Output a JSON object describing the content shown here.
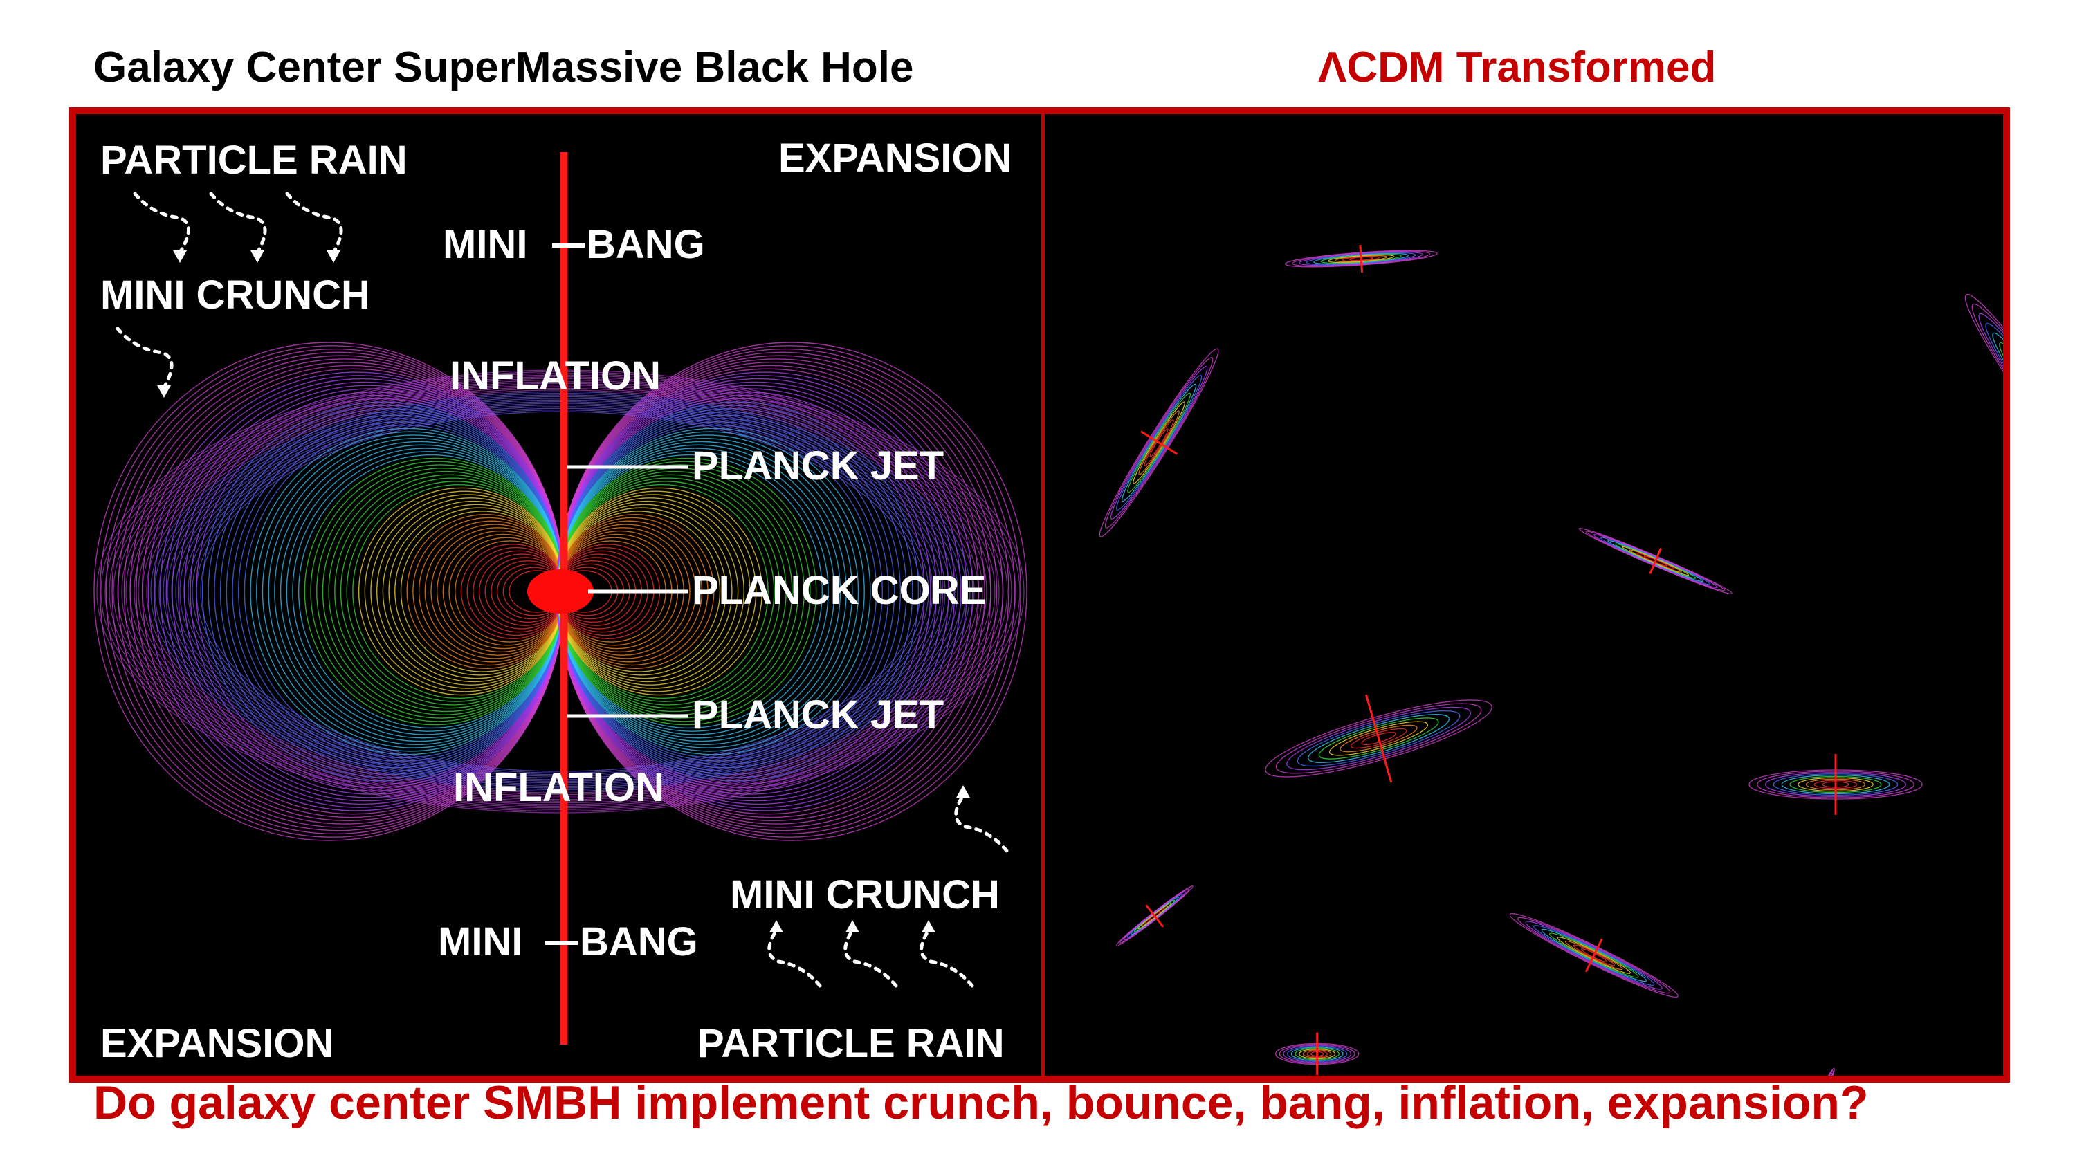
{
  "titles": {
    "left": "Galaxy Center SuperMassive Black Hole",
    "right": "ΛCDM Transformed",
    "caption": "Do galaxy center SMBH implement crunch, bounce, bang, inflation, expansion?"
  },
  "labels": {
    "particle_rain_top": "PARTICLE RAIN",
    "expansion_top": "EXPANSION",
    "mini_bang_top": "MINI",
    "bang_top": "BANG",
    "mini_crunch_top": "MINI CRUNCH",
    "inflation_top": "INFLATION",
    "planck_jet_top": "PLANCK JET",
    "planck_core": "PLANCK CORE",
    "planck_jet_bottom": "PLANCK JET",
    "inflation_bottom": "INFLATION",
    "mini_crunch_bottom": "MINI CRUNCH",
    "mini_bang_bottom": "MINI",
    "bang_bottom": "BANG",
    "expansion_bottom": "EXPANSION",
    "particle_rain_bottom": "PARTICLE RAIN"
  },
  "colors": {
    "accent_red": "#c40000",
    "axis_red": "#ff1a1a",
    "field_palette": [
      "#ff3030",
      "#ff8a1a",
      "#ffe033",
      "#38e038",
      "#33c8ff",
      "#4a6dff",
      "#b040ff",
      "#d040d0"
    ]
  },
  "icons": [
    "dotted-arrow-down-right-icon",
    "dotted-arrow-up-left-icon"
  ]
}
